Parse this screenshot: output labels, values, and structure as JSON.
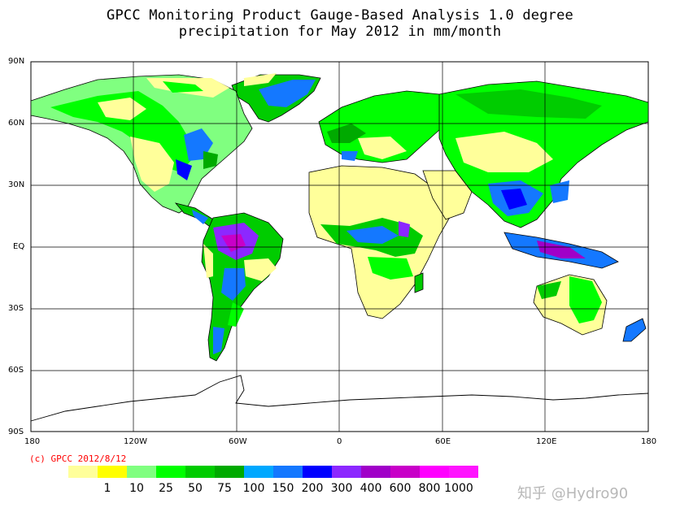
{
  "title_line1": "GPCC Monitoring Product Gauge-Based Analysis 1.0 degree",
  "title_line2": "precipitation for May  2012 in mm/month",
  "lat_labels": [
    "90N",
    "60N",
    "30N",
    "EQ",
    "30S",
    "60S",
    "90S"
  ],
  "lon_labels": [
    "180",
    "120W",
    "60W",
    "0",
    "60E",
    "120E",
    "180"
  ],
  "copyright": "(c) GPCC 2012/8/12",
  "legend": {
    "colors": [
      "#ffff9a",
      "#ffff00",
      "#80ff80",
      "#00ff00",
      "#00cc00",
      "#00aa00",
      "#00a8ff",
      "#1478ff",
      "#0000ff",
      "#8c28ff",
      "#a000c8",
      "#c800c8",
      "#ff00ff",
      "#ff14ff"
    ],
    "labels": [
      "1",
      "10",
      "25",
      "50",
      "75",
      "100",
      "150",
      "200",
      "300",
      "400",
      "600",
      "800",
      "1000"
    ]
  },
  "watermark": "知乎 @Hydro90"
}
